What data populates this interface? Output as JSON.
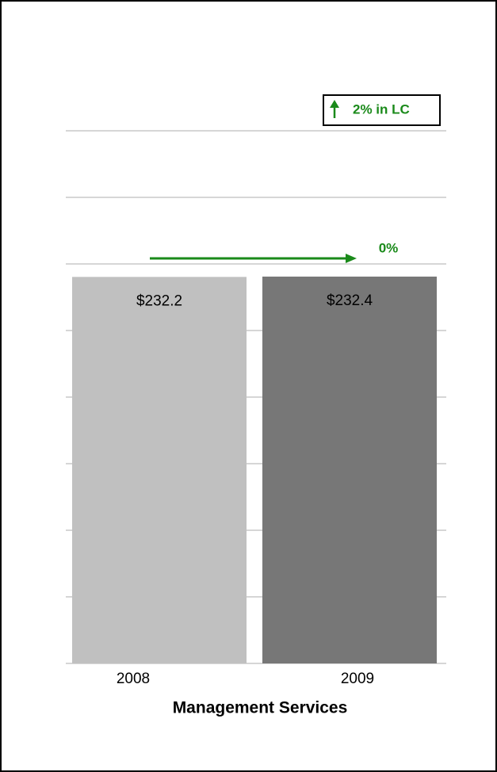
{
  "chart_data": {
    "type": "bar",
    "categories": [
      "2008",
      "2009"
    ],
    "values": [
      232.2,
      232.4
    ],
    "value_labels": [
      "$232.2",
      "$232.4"
    ],
    "colors": [
      "#c0c0c0",
      "#777777"
    ],
    "xlabel": "Management Services",
    "ylim": [
      0,
      320
    ],
    "yticks": [
      0,
      40,
      80,
      120,
      160,
      200,
      240,
      280,
      320
    ],
    "grid": true,
    "annotations": [
      "2% in LC",
      "0%"
    ]
  }
}
